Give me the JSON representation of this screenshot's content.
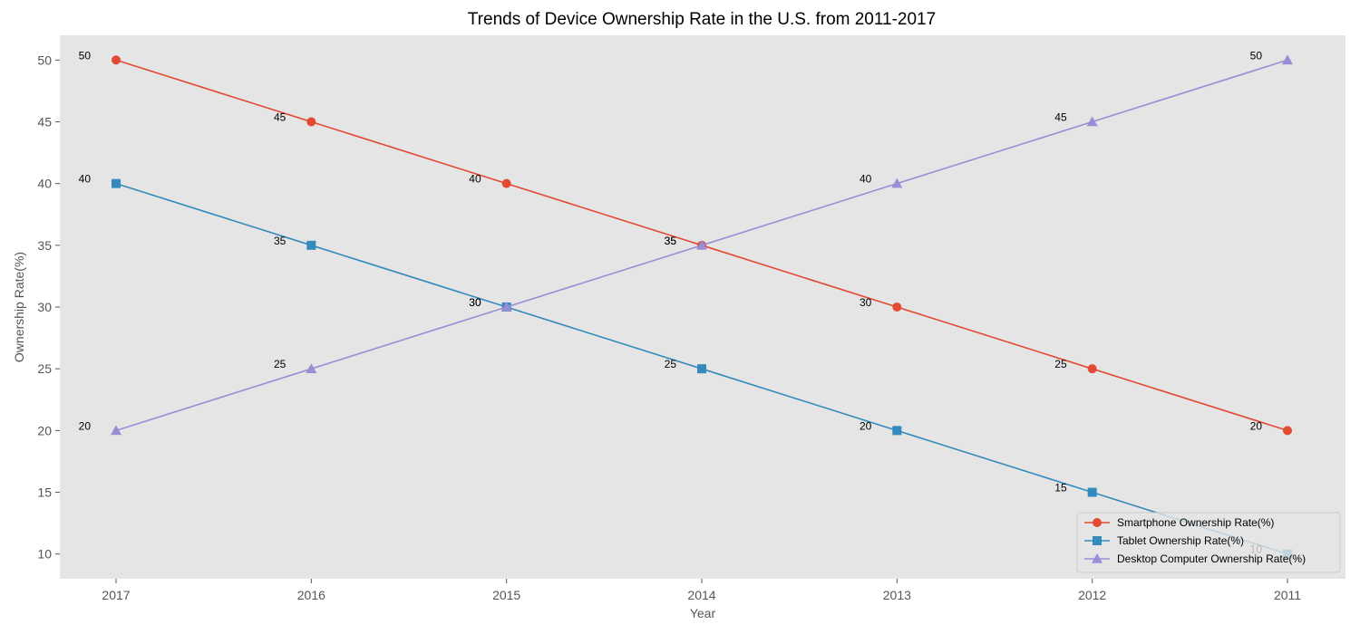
{
  "chart_data": {
    "type": "line",
    "title": "Trends of Device Ownership Rate in the U.S. from 2011-2017",
    "xlabel": "Year",
    "ylabel": "Ownership Rate(%)",
    "categories": [
      "2017",
      "2016",
      "2015",
      "2014",
      "2013",
      "2012",
      "2011"
    ],
    "y_ticks": [
      10,
      15,
      20,
      25,
      30,
      35,
      40,
      45,
      50
    ],
    "ylim": [
      8,
      52
    ],
    "grid": false,
    "legend_position": "bottom-right",
    "series": [
      {
        "name": "Smartphone Ownership Rate(%)",
        "values": [
          50,
          45,
          40,
          35,
          30,
          25,
          20
        ],
        "color": "#E24A33",
        "marker": "circle"
      },
      {
        "name": "Tablet Ownership Rate(%)",
        "values": [
          40,
          35,
          30,
          25,
          20,
          15,
          10
        ],
        "color": "#348ABD",
        "marker": "square"
      },
      {
        "name": "Desktop Computer Ownership Rate(%)",
        "values": [
          20,
          25,
          30,
          35,
          40,
          45,
          50
        ],
        "color": "#988ED5",
        "marker": "triangle"
      }
    ],
    "colors": {
      "plot_background": "#E5E5E5",
      "tick_text": "#555555"
    }
  }
}
